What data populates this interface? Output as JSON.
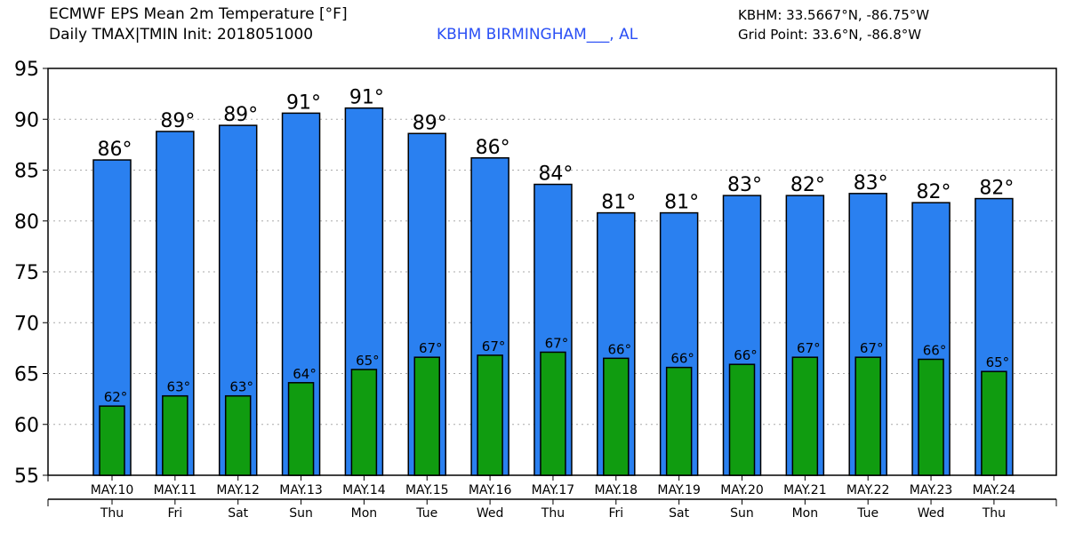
{
  "header": {
    "title": "ECMWF EPS Mean 2m Temperature [°F]",
    "subtitle": "Daily TMAX|TMIN Init: 2018051000",
    "station": "KBHM BIRMINGHAM___, AL",
    "station_coords": "KBHM: 33.5667°N, -86.75°W",
    "grid_point": "Grid Point: 33.6°N, -86.8°W"
  },
  "colors": {
    "tmax": "#2a80f0",
    "tmin": "#109c10",
    "station": "#2a4ff5"
  },
  "chart_data": {
    "type": "bar",
    "title": "ECMWF EPS Mean 2m Temperature [°F]",
    "ylim": [
      55,
      95
    ],
    "yticks": [
      55,
      60,
      65,
      70,
      75,
      80,
      85,
      90,
      95
    ],
    "grid": true,
    "categories": [
      "MAY.10",
      "MAY.11",
      "MAY.12",
      "MAY.13",
      "MAY.14",
      "MAY.15",
      "MAY.16",
      "MAY.17",
      "MAY.18",
      "MAY.19",
      "MAY.20",
      "MAY.21",
      "MAY.22",
      "MAY.23",
      "MAY.24"
    ],
    "weekdays": [
      "Thu",
      "Fri",
      "Sat",
      "Sun",
      "Mon",
      "Tue",
      "Wed",
      "Thu",
      "Fri",
      "Sat",
      "Sun",
      "Mon",
      "Tue",
      "Wed",
      "Thu"
    ],
    "series": [
      {
        "name": "TMAX",
        "values": [
          86.0,
          88.8,
          89.4,
          90.6,
          91.1,
          88.6,
          86.2,
          83.6,
          80.8,
          80.8,
          82.5,
          82.5,
          82.7,
          81.8,
          82.2
        ],
        "labels": [
          "86°",
          "89°",
          "89°",
          "91°",
          "91°",
          "89°",
          "86°",
          "84°",
          "81°",
          "81°",
          "83°",
          "82°",
          "83°",
          "82°",
          "82°"
        ]
      },
      {
        "name": "TMIN",
        "values": [
          61.8,
          62.8,
          62.8,
          64.1,
          65.4,
          66.6,
          66.8,
          67.1,
          66.5,
          65.6,
          65.9,
          66.6,
          66.6,
          66.4,
          65.2
        ],
        "labels": [
          "62°",
          "63°",
          "63°",
          "64°",
          "65°",
          "67°",
          "67°",
          "67°",
          "66°",
          "66°",
          "66°",
          "67°",
          "67°",
          "66°",
          "65°"
        ]
      }
    ]
  }
}
